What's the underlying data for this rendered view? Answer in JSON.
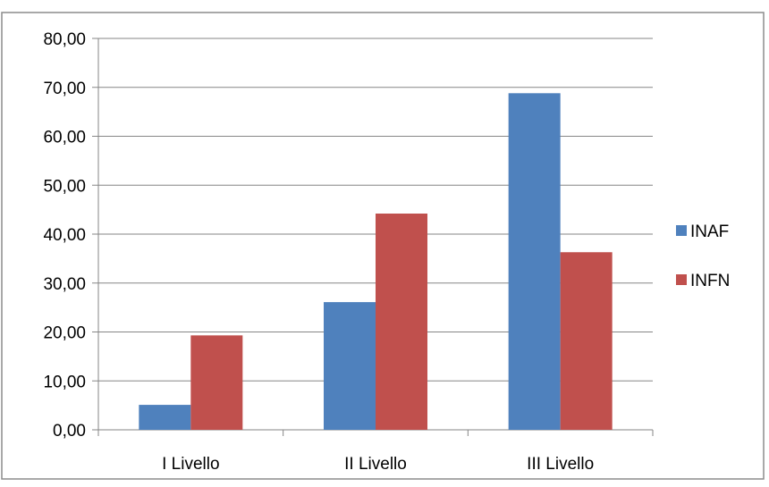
{
  "chart_data": {
    "type": "bar",
    "categories": [
      "I Livello",
      "II Livello",
      "III Livello"
    ],
    "series": [
      {
        "name": "INAF",
        "values": [
          5.1,
          26.1,
          68.8
        ],
        "color": "#4F81BD"
      },
      {
        "name": "INFN",
        "values": [
          19.3,
          44.2,
          36.3
        ],
        "color": "#C0504D"
      }
    ],
    "ylim": [
      0,
      80
    ],
    "yticks": [
      "0,00",
      "10,00",
      "20,00",
      "30,00",
      "40,00",
      "50,00",
      "60,00",
      "70,00",
      "80,00"
    ],
    "grid": true,
    "legend_position": "right"
  }
}
